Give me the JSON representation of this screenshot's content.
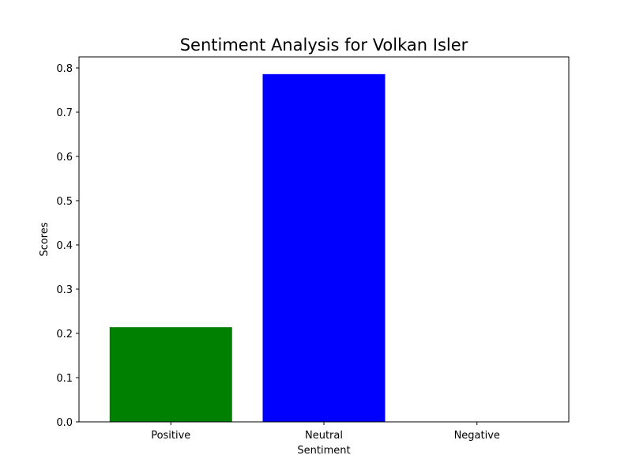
{
  "chart_data": {
    "type": "bar",
    "title": "Sentiment Analysis for Volkan Isler",
    "xlabel": "Sentiment",
    "ylabel": "Scores",
    "categories": [
      "Positive",
      "Neutral",
      "Negative"
    ],
    "values": [
      0.214,
      0.786,
      0.0
    ],
    "colors": [
      "#008000",
      "#0000ff",
      "#ff0000"
    ],
    "ylim": [
      0,
      0.825
    ],
    "yticks": [
      0.0,
      0.1,
      0.2,
      0.3,
      0.4,
      0.5,
      0.6,
      0.7,
      0.8
    ],
    "ytick_labels": [
      "0.0",
      "0.1",
      "0.2",
      "0.3",
      "0.4",
      "0.5",
      "0.6",
      "0.7",
      "0.8"
    ],
    "grid": false,
    "legend": "none"
  }
}
